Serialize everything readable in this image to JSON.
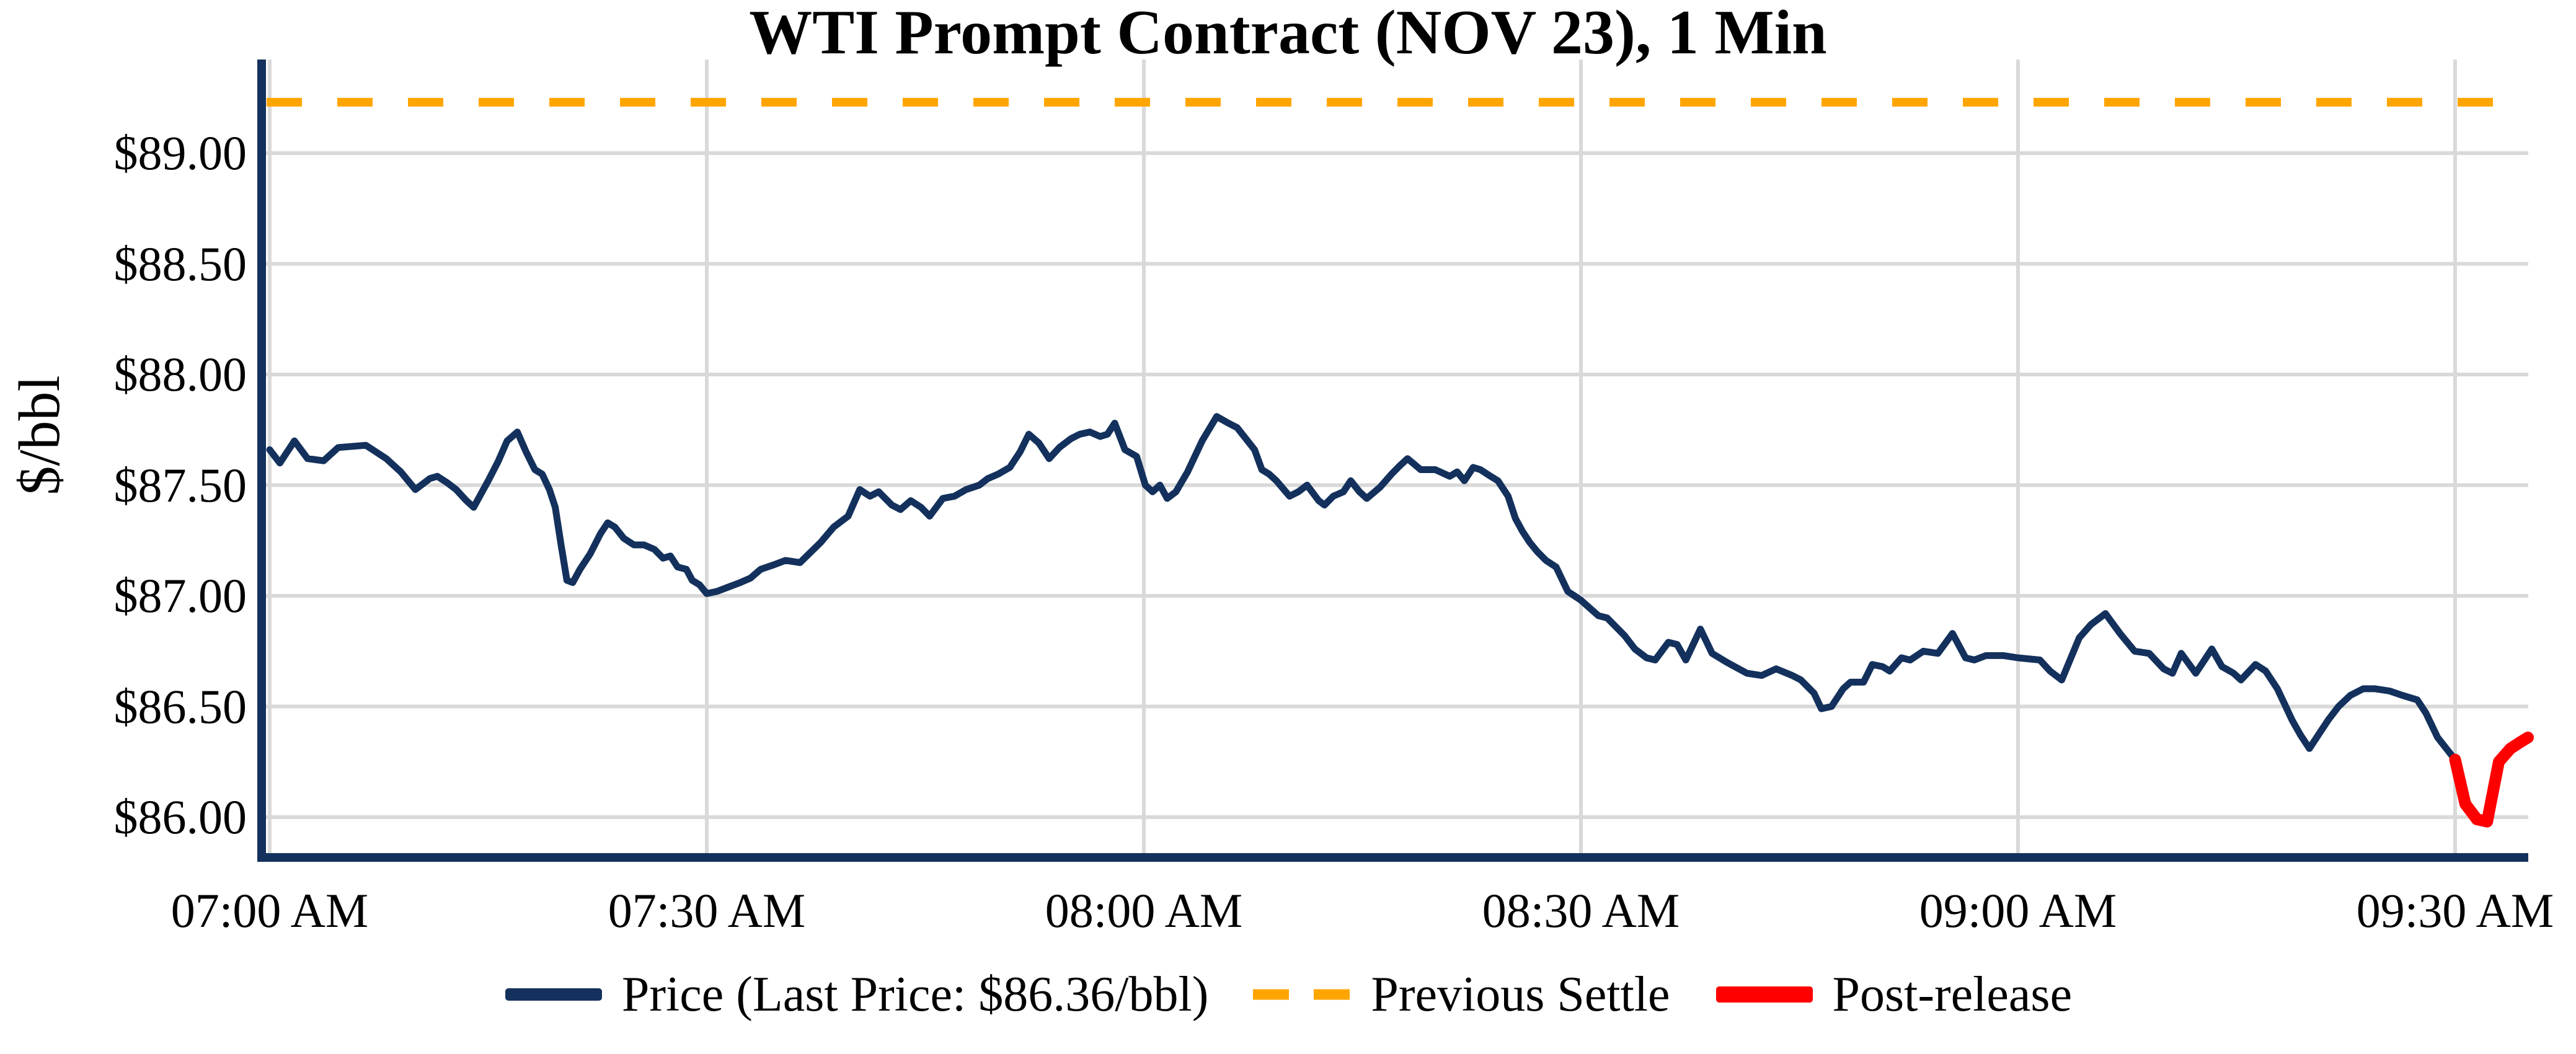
{
  "title": "WTI Prompt Contract (NOV 23), 1 Min",
  "y_axis": {
    "label": "$/bbl",
    "ticks": [
      {
        "label": "$89.00",
        "value": 89.0
      },
      {
        "label": "$88.50",
        "value": 88.5
      },
      {
        "label": "$88.00",
        "value": 88.0
      },
      {
        "label": "$87.50",
        "value": 87.5
      },
      {
        "label": "$87.00",
        "value": 87.0
      },
      {
        "label": "$86.50",
        "value": 86.5
      },
      {
        "label": "$86.00",
        "value": 86.0
      }
    ]
  },
  "x_axis": {
    "ticks": [
      {
        "label": "07:00 AM",
        "minute": 0
      },
      {
        "label": "07:30 AM",
        "minute": 30
      },
      {
        "label": "08:00 AM",
        "minute": 60
      },
      {
        "label": "08:30 AM",
        "minute": 90
      },
      {
        "label": "09:00 AM",
        "minute": 120
      },
      {
        "label": "09:30 AM",
        "minute": 150
      }
    ]
  },
  "legend": {
    "items": [
      {
        "label": "Price (Last Price: $86.36/bbl)",
        "swatch": "solid",
        "color": "#13315C"
      },
      {
        "label": "Previous Settle",
        "swatch": "dashed",
        "color": "#FFA500"
      },
      {
        "label": "Post-release",
        "swatch": "thick",
        "color": "#FF0000"
      }
    ]
  },
  "colors": {
    "price_line": "#13315C",
    "previous_settle": "#FFA500",
    "post_release": "#FF0000",
    "grid": "#D9D9D9",
    "axis": "#13315C",
    "text": "#000000",
    "background": "#FFFFFF"
  },
  "chart_data": {
    "type": "line",
    "title": "WTI Prompt Contract (NOV 23), 1 Min",
    "xlabel": "",
    "ylabel": "$/bbl",
    "x_unit": "minutes after 07:00 AM",
    "x_tick_minutes": [
      0,
      30,
      60,
      90,
      120,
      150
    ],
    "x_tick_labels": [
      "07:00 AM",
      "07:30 AM",
      "08:00 AM",
      "08:30 AM",
      "09:00 AM",
      "09:30 AM"
    ],
    "y_tick_values": [
      89.0,
      88.5,
      88.0,
      87.5,
      87.0,
      86.5,
      86.0
    ],
    "xlim": [
      -0.6,
      155.2
    ],
    "ylim": [
      85.82,
      89.41
    ],
    "grid": true,
    "legend_position": "bottom",
    "previous_settle_value": 89.23,
    "last_price": 86.36,
    "series": [
      {
        "name": "Price (Last Price: $86.36/bbl)",
        "style": "solid",
        "points": [
          [
            0,
            87.66
          ],
          [
            0.7,
            87.6
          ],
          [
            1.7,
            87.7
          ],
          [
            2.6,
            87.62
          ],
          [
            3.7,
            87.61
          ],
          [
            4.7,
            87.67
          ],
          [
            6.6,
            87.68
          ],
          [
            8,
            87.62
          ],
          [
            9,
            87.56
          ],
          [
            10,
            87.48
          ],
          [
            11,
            87.53
          ],
          [
            11.5,
            87.54
          ],
          [
            12.2,
            87.51
          ],
          [
            12.8,
            87.48
          ],
          [
            13.5,
            87.43
          ],
          [
            14,
            87.4
          ],
          [
            15,
            87.52
          ],
          [
            15.7,
            87.61
          ],
          [
            16.3,
            87.7
          ],
          [
            17,
            87.74
          ],
          [
            17.6,
            87.65
          ],
          [
            18.2,
            87.57
          ],
          [
            18.7,
            87.55
          ],
          [
            19.2,
            87.48
          ],
          [
            19.6,
            87.4
          ],
          [
            20,
            87.23
          ],
          [
            20.4,
            87.07
          ],
          [
            20.8,
            87.06
          ],
          [
            21.3,
            87.12
          ],
          [
            22,
            87.19
          ],
          [
            22.7,
            87.28
          ],
          [
            23.2,
            87.33
          ],
          [
            23.7,
            87.31
          ],
          [
            24.3,
            87.26
          ],
          [
            25,
            87.23
          ],
          [
            25.7,
            87.23
          ],
          [
            26.4,
            87.21
          ],
          [
            27,
            87.17
          ],
          [
            27.5,
            87.18
          ],
          [
            28,
            87.13
          ],
          [
            28.6,
            87.12
          ],
          [
            29,
            87.07
          ],
          [
            29.5,
            87.05
          ],
          [
            30,
            87.01
          ],
          [
            30.7,
            87.02
          ],
          [
            31.5,
            87.04
          ],
          [
            32.3,
            87.06
          ],
          [
            33,
            87.08
          ],
          [
            33.7,
            87.12
          ],
          [
            34.6,
            87.14
          ],
          [
            35.4,
            87.16
          ],
          [
            36.4,
            87.15
          ],
          [
            37.8,
            87.24
          ],
          [
            38.7,
            87.31
          ],
          [
            39.7,
            87.36
          ],
          [
            40.5,
            87.48
          ],
          [
            41.2,
            87.45
          ],
          [
            41.8,
            87.47
          ],
          [
            42.7,
            87.41
          ],
          [
            43.3,
            87.39
          ],
          [
            44,
            87.43
          ],
          [
            44.7,
            87.4
          ],
          [
            45.3,
            87.36
          ],
          [
            46.2,
            87.44
          ],
          [
            47,
            87.45
          ],
          [
            47.8,
            87.48
          ],
          [
            48.7,
            87.5
          ],
          [
            49.3,
            87.53
          ],
          [
            50,
            87.55
          ],
          [
            50.8,
            87.58
          ],
          [
            51.5,
            87.65
          ],
          [
            52.1,
            87.73
          ],
          [
            52.8,
            87.69
          ],
          [
            53.5,
            87.62
          ],
          [
            54.2,
            87.67
          ],
          [
            55,
            87.71
          ],
          [
            55.6,
            87.73
          ],
          [
            56.3,
            87.74
          ],
          [
            57,
            87.72
          ],
          [
            57.5,
            87.73
          ],
          [
            58,
            87.78
          ],
          [
            58.7,
            87.66
          ],
          [
            59.5,
            87.63
          ],
          [
            60.1,
            87.5
          ],
          [
            60.6,
            87.47
          ],
          [
            61.1,
            87.5
          ],
          [
            61.6,
            87.44
          ],
          [
            62.2,
            87.47
          ],
          [
            63,
            87.56
          ],
          [
            64,
            87.7
          ],
          [
            65,
            87.81
          ],
          [
            65.8,
            87.78
          ],
          [
            66.4,
            87.76
          ],
          [
            67,
            87.71
          ],
          [
            67.6,
            87.66
          ],
          [
            68.1,
            87.57
          ],
          [
            68.6,
            87.55
          ],
          [
            69.1,
            87.52
          ],
          [
            70,
            87.45
          ],
          [
            70.6,
            87.47
          ],
          [
            71.2,
            87.5
          ],
          [
            72,
            87.43
          ],
          [
            72.4,
            87.41
          ],
          [
            73,
            87.45
          ],
          [
            73.7,
            87.47
          ],
          [
            74.2,
            87.52
          ],
          [
            74.8,
            87.47
          ],
          [
            75.3,
            87.44
          ],
          [
            76.2,
            87.49
          ],
          [
            77,
            87.55
          ],
          [
            77.6,
            87.59
          ],
          [
            78.1,
            87.62
          ],
          [
            79,
            87.57
          ],
          [
            80,
            87.57
          ],
          [
            81,
            87.54
          ],
          [
            81.5,
            87.56
          ],
          [
            82,
            87.52
          ],
          [
            82.6,
            87.58
          ],
          [
            83.1,
            87.57
          ],
          [
            83.8,
            87.54
          ],
          [
            84.3,
            87.52
          ],
          [
            85,
            87.45
          ],
          [
            85.5,
            87.35
          ],
          [
            86,
            87.29
          ],
          [
            86.5,
            87.24
          ],
          [
            87,
            87.2
          ],
          [
            87.6,
            87.16
          ],
          [
            88.3,
            87.13
          ],
          [
            89.1,
            87.02
          ],
          [
            90,
            86.98
          ],
          [
            91.2,
            86.91
          ],
          [
            91.8,
            86.9
          ],
          [
            93,
            86.82
          ],
          [
            93.7,
            86.76
          ],
          [
            94.5,
            86.72
          ],
          [
            95.1,
            86.71
          ],
          [
            96,
            86.79
          ],
          [
            96.6,
            86.78
          ],
          [
            97.2,
            86.71
          ],
          [
            98.2,
            86.85
          ],
          [
            99,
            86.74
          ],
          [
            100,
            86.7
          ],
          [
            101.4,
            86.65
          ],
          [
            102.4,
            86.64
          ],
          [
            103.4,
            86.67
          ],
          [
            104.5,
            86.64
          ],
          [
            105.1,
            86.62
          ],
          [
            106,
            86.56
          ],
          [
            106.5,
            86.49
          ],
          [
            107.2,
            86.5
          ],
          [
            108,
            86.58
          ],
          [
            108.5,
            86.61
          ],
          [
            109.4,
            86.61
          ],
          [
            110,
            86.69
          ],
          [
            110.7,
            86.68
          ],
          [
            111.2,
            86.66
          ],
          [
            112,
            86.72
          ],
          [
            112.6,
            86.71
          ],
          [
            113.5,
            86.75
          ],
          [
            114.5,
            86.74
          ],
          [
            115.5,
            86.83
          ],
          [
            116.4,
            86.72
          ],
          [
            117,
            86.71
          ],
          [
            117.8,
            86.73
          ],
          [
            119,
            86.73
          ],
          [
            120,
            86.72
          ],
          [
            121.5,
            86.71
          ],
          [
            122.2,
            86.66
          ],
          [
            123,
            86.62
          ],
          [
            124.2,
            86.81
          ],
          [
            125,
            86.87
          ],
          [
            126,
            86.92
          ],
          [
            127,
            86.83
          ],
          [
            128,
            86.75
          ],
          [
            129,
            86.74
          ],
          [
            130,
            86.67
          ],
          [
            130.6,
            86.65
          ],
          [
            131.2,
            86.74
          ],
          [
            132.2,
            86.65
          ],
          [
            133.3,
            86.76
          ],
          [
            134,
            86.68
          ],
          [
            134.8,
            86.65
          ],
          [
            135.3,
            86.62
          ],
          [
            136.3,
            86.69
          ],
          [
            137,
            86.66
          ],
          [
            137.8,
            86.58
          ],
          [
            138.3,
            86.51
          ],
          [
            138.8,
            86.44
          ],
          [
            139.4,
            86.37
          ],
          [
            140,
            86.31
          ],
          [
            140.7,
            86.38
          ],
          [
            141.3,
            86.44
          ],
          [
            142,
            86.5
          ],
          [
            142.8,
            86.55
          ],
          [
            143.7,
            86.58
          ],
          [
            144.5,
            86.58
          ],
          [
            145.5,
            86.57
          ],
          [
            146.4,
            86.55
          ],
          [
            147.4,
            86.53
          ],
          [
            148,
            86.47
          ],
          [
            148.8,
            86.36
          ],
          [
            150,
            86.26
          ]
        ]
      },
      {
        "name": "Post-release",
        "style": "solid-thick",
        "points": [
          [
            150,
            86.26
          ],
          [
            150.7,
            86.06
          ],
          [
            151.5,
            85.99
          ],
          [
            152.2,
            85.98
          ],
          [
            153,
            86.25
          ],
          [
            153.8,
            86.31
          ],
          [
            154.5,
            86.34
          ],
          [
            155,
            86.36
          ]
        ]
      },
      {
        "name": "Previous Settle",
        "style": "dashed-horizontal",
        "value": 89.23
      }
    ]
  }
}
